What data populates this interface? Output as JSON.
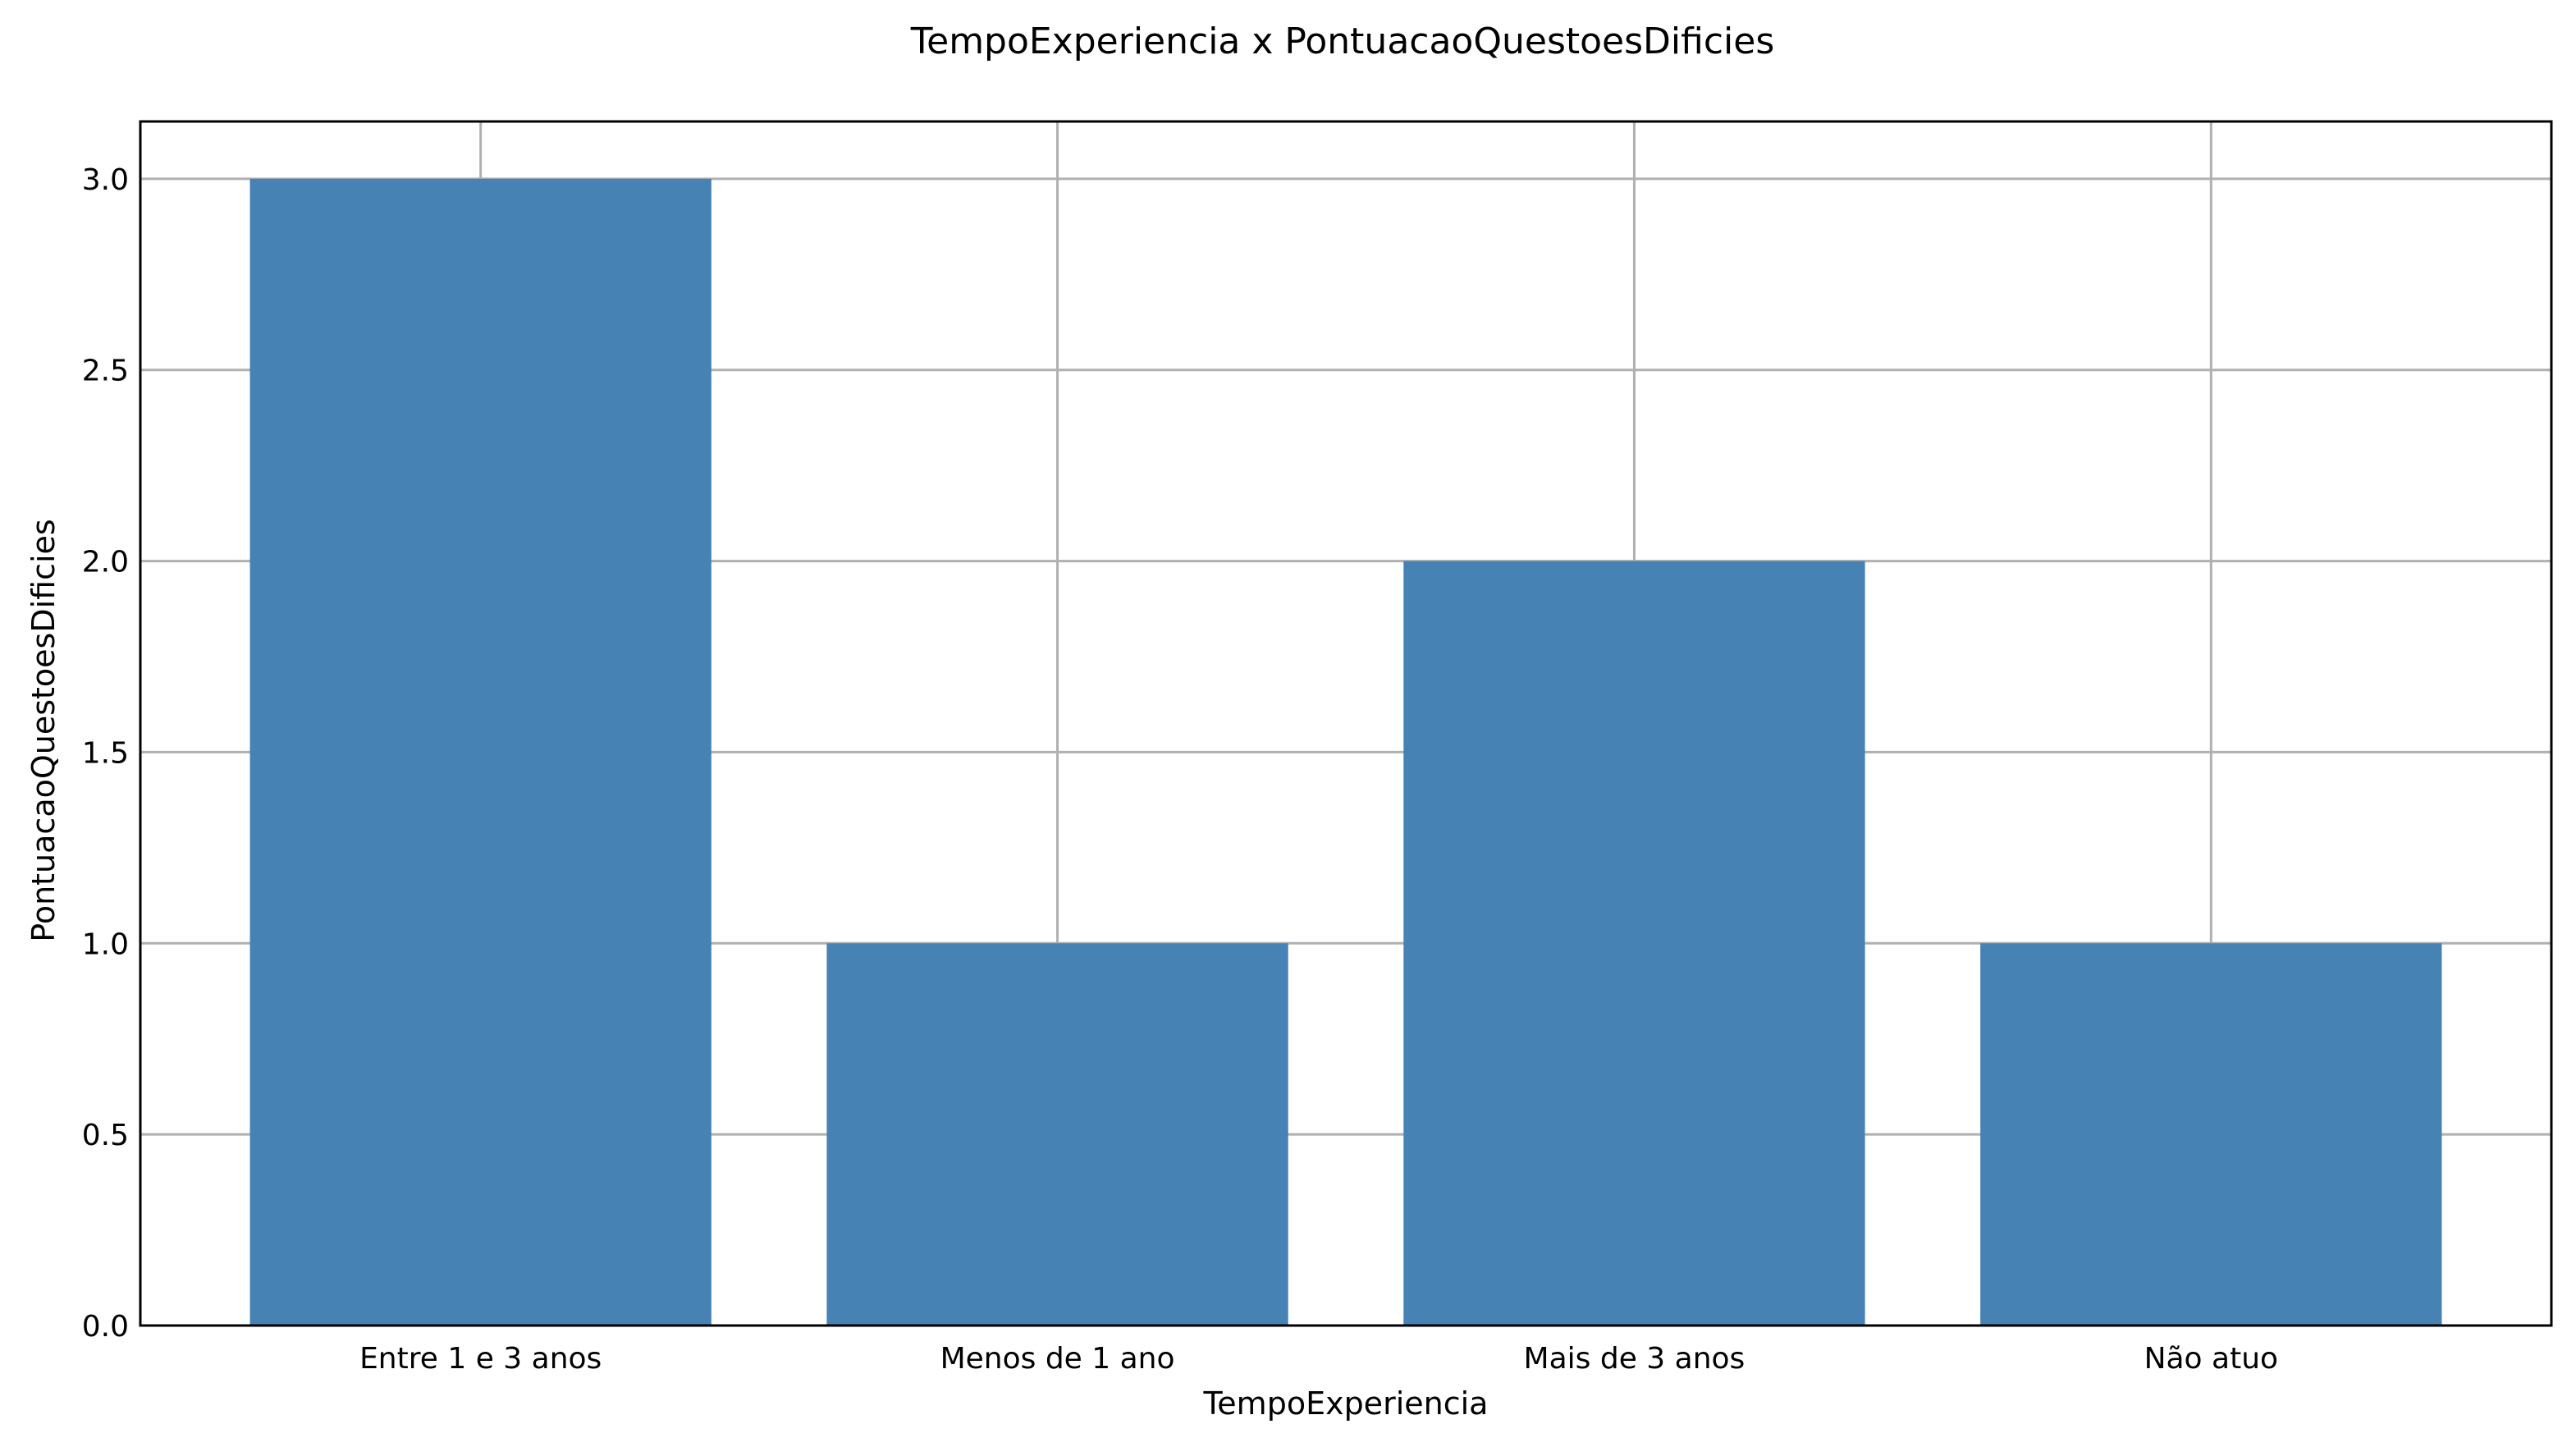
{
  "chart_data": {
    "type": "bar",
    "title": "TempoExperiencia x PontuacaoQuestoesDificies",
    "xlabel": "TempoExperiencia",
    "ylabel": "PontuacaoQuestoesDificies",
    "categories": [
      "Entre 1 e 3 anos",
      "Menos de 1 ano",
      "Mais de 3 anos",
      "Não atuo"
    ],
    "values": [
      3,
      1,
      2,
      1
    ],
    "ylim": [
      0,
      3.15
    ],
    "yticks": [
      0.0,
      0.5,
      1.0,
      1.5,
      2.0,
      2.5,
      3.0
    ],
    "ytick_labels": [
      "0.0",
      "0.5",
      "1.0",
      "1.5",
      "2.0",
      "2.5",
      "3.0"
    ],
    "grid": true,
    "bar_color": "#4682b4"
  }
}
